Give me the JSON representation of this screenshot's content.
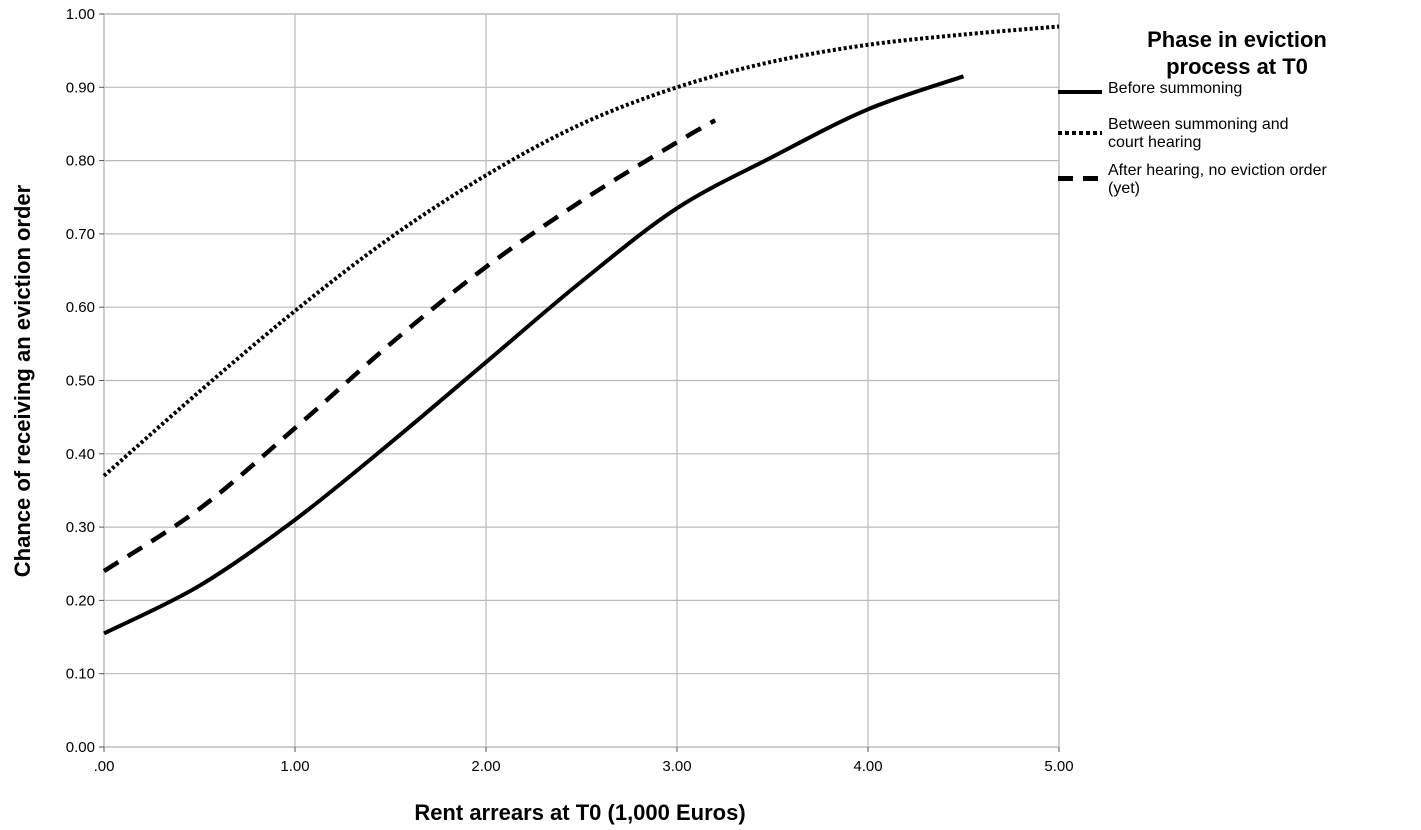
{
  "chart_data": {
    "type": "line",
    "xlabel": "Rent arrears at T0 (1,000 Euros)",
    "ylabel": "Chance of receiving an eviction order",
    "xlim": [
      0,
      5
    ],
    "ylim": [
      0,
      1
    ],
    "x_ticks": [
      ".00",
      "1.00",
      "2.00",
      "3.00",
      "4.00",
      "5.00"
    ],
    "y_ticks": [
      "0.00",
      "0.10",
      "0.20",
      "0.30",
      "0.40",
      "0.50",
      "0.60",
      "0.70",
      "0.80",
      "0.90",
      "1.00"
    ],
    "grid": true,
    "legend": {
      "title_line1": "Phase in eviction",
      "title_line2": "process at T0",
      "placement": "right"
    },
    "series": [
      {
        "name": "Before summoning",
        "style": "solid",
        "points": [
          [
            0,
            0.155
          ],
          [
            0.5,
            0.22
          ],
          [
            1.0,
            0.31
          ],
          [
            1.5,
            0.415
          ],
          [
            2.0,
            0.525
          ],
          [
            2.5,
            0.635
          ],
          [
            3.0,
            0.735
          ],
          [
            3.5,
            0.805
          ],
          [
            4.0,
            0.87
          ],
          [
            4.5,
            0.915
          ]
        ]
      },
      {
        "name": "Between summoning and court hearing",
        "name_line1": "Between summoning and",
        "name_line2": "court hearing",
        "style": "dotted",
        "points": [
          [
            0,
            0.37
          ],
          [
            0.5,
            0.485
          ],
          [
            1.0,
            0.595
          ],
          [
            1.5,
            0.695
          ],
          [
            2.0,
            0.78
          ],
          [
            2.5,
            0.85
          ],
          [
            3.0,
            0.9
          ],
          [
            3.5,
            0.935
          ],
          [
            4.0,
            0.958
          ],
          [
            4.5,
            0.972
          ],
          [
            5.0,
            0.983
          ]
        ]
      },
      {
        "name": "After hearing, no eviction order (yet)",
        "name_line1": "After hearing, no eviction order",
        "name_line2": "(yet)",
        "style": "dashed",
        "points": [
          [
            0,
            0.24
          ],
          [
            0.5,
            0.325
          ],
          [
            1.0,
            0.435
          ],
          [
            1.5,
            0.55
          ],
          [
            2.0,
            0.655
          ],
          [
            2.5,
            0.745
          ],
          [
            3.0,
            0.825
          ],
          [
            3.2,
            0.855
          ]
        ]
      }
    ]
  }
}
